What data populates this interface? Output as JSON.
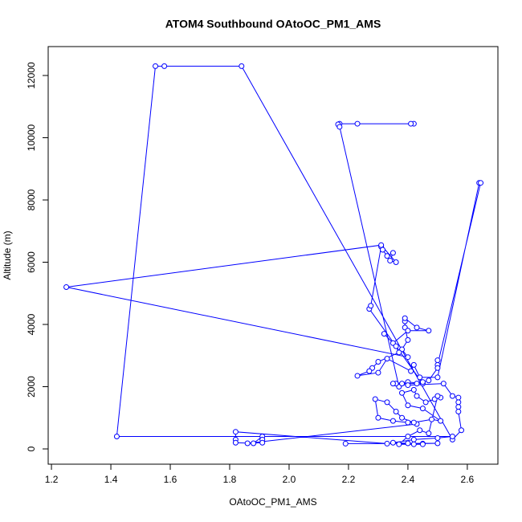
{
  "chart_data": {
    "type": "scatter",
    "mode": "points-and-lines",
    "title": "ATOM4 Southbound OAtoOC_PM1_AMS",
    "x_label": "OAtoOC_PM1_AMS",
    "y_label": "Altitude (m)",
    "color": "#0000ff",
    "xlim": [
      1.189,
      2.703
    ],
    "ylim": [
      -490,
      12929
    ],
    "xticks": [
      1.2,
      1.4,
      1.6,
      1.8,
      {
        "value": 2,
        "label": "2.0"
      },
      2.2,
      2.4,
      2.6
    ],
    "yticks": [
      0,
      2000,
      4000,
      6000,
      8000,
      10000,
      12000
    ],
    "x": [
      2.42,
      2.41,
      2.23,
      2.17,
      2.165,
      2.17,
      2.37,
      2.36,
      2.4,
      2.45,
      2.27,
      2.275,
      2.31,
      2.315,
      2.33,
      2.35,
      2.34,
      2.36,
      2.31,
      1.25,
      2.4,
      2.38,
      2.4,
      2.39,
      2.39,
      2.39,
      2.43,
      2.47,
      2.4,
      2.35,
      2.32,
      2.36,
      2.37,
      2.3,
      2.28,
      2.27,
      2.23,
      2.3,
      2.33,
      2.41,
      2.42,
      2.44,
      2.5,
      2.64,
      2.645,
      2.5,
      2.5,
      2.5,
      2.47,
      2.45,
      2.43,
      2.38,
      2.35,
      2.4,
      2.52,
      2.55,
      2.57,
      2.57,
      2.57,
      2.57,
      2.58,
      2.55,
      1.84,
      1.58,
      1.55,
      1.42,
      2.55,
      2.5,
      2.42,
      2.35,
      2.4,
      2.45,
      2.5,
      2.19,
      2.33,
      1.82,
      1.82,
      1.82,
      1.88,
      1.91,
      1.91,
      1.91,
      1.86,
      2.43,
      2.38,
      2.36,
      2.33,
      2.29,
      2.3,
      2.35,
      2.4,
      2.42,
      2.48,
      2.51,
      2.45,
      2.4,
      2.38,
      2.42,
      2.43,
      2.46,
      2.49,
      2.51,
      2.5,
      2.47,
      2.44,
      2.4,
      2.37,
      2.42,
      2.45
    ],
    "values": [
      10450,
      10450,
      10450,
      10450,
      10430,
      10350,
      2000,
      2100,
      2150,
      2100,
      4500,
      4600,
      6500,
      6400,
      6200,
      6300,
      6050,
      6000,
      6550,
      5200,
      2950,
      3200,
      3500,
      3900,
      4100,
      4200,
      3900,
      3800,
      3800,
      3400,
      3700,
      3300,
      3100,
      2800,
      2600,
      2500,
      2350,
      2450,
      2900,
      2500,
      2700,
      2300,
      2300,
      8550,
      8550,
      2700,
      2850,
      2600,
      2200,
      2150,
      2100,
      2100,
      2100,
      2050,
      2100,
      1700,
      1650,
      1500,
      1350,
      1200,
      600,
      300,
      12300,
      12300,
      12300,
      400,
      400,
      350,
      300,
      200,
      180,
      170,
      180,
      170,
      170,
      550,
      300,
      200,
      180,
      400,
      300,
      200,
      180,
      800,
      1000,
      1200,
      1500,
      1600,
      1000,
      900,
      850,
      850,
      950,
      900,
      1300,
      1400,
      1800,
      1900,
      1700,
      1500,
      1600,
      1650,
      1700,
      500,
      600,
      400,
      150,
      150,
      150
    ]
  }
}
